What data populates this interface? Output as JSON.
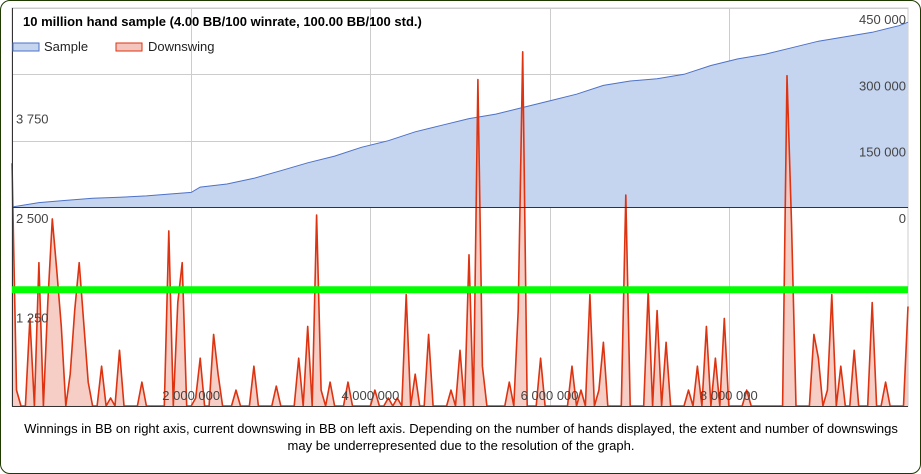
{
  "chart_data": {
    "type": "area",
    "title": "10 million hand sample (4.00 BB/100 winrate, 100.00 BB/100 std.)",
    "legend_position": "top-left",
    "series": [
      {
        "name": "Sample",
        "axis": "right",
        "color": "#4d72c8",
        "fill": "#c5d4ef",
        "x": [
          0,
          300000,
          600000,
          900000,
          1200000,
          1500000,
          1800000,
          2000000,
          2100000,
          2400000,
          2700000,
          3000000,
          3300000,
          3600000,
          3900000,
          4200000,
          4500000,
          4800000,
          5100000,
          5400000,
          5700000,
          6000000,
          6300000,
          6600000,
          6900000,
          7200000,
          7500000,
          7800000,
          8100000,
          8400000,
          8700000,
          9000000,
          9300000,
          9600000,
          9900000,
          10000000
        ],
        "values": [
          0,
          10000,
          15000,
          20000,
          22000,
          25000,
          30000,
          33000,
          45000,
          52000,
          65000,
          82000,
          100000,
          115000,
          135000,
          150000,
          170000,
          185000,
          200000,
          210000,
          225000,
          240000,
          255000,
          275000,
          285000,
          290000,
          300000,
          320000,
          335000,
          345000,
          360000,
          375000,
          385000,
          395000,
          410000,
          418000
        ]
      },
      {
        "name": "Downswing",
        "axis": "left",
        "color": "#dd3311",
        "fill": "#f4c5bc",
        "x": [
          0,
          50000,
          100000,
          150000,
          200000,
          250000,
          300000,
          350000,
          400000,
          450000,
          500000,
          550000,
          600000,
          650000,
          700000,
          750000,
          800000,
          850000,
          900000,
          950000,
          1000000,
          1050000,
          1100000,
          1150000,
          1200000,
          1250000,
          1300000,
          1350000,
          1400000,
          1450000,
          1500000,
          1550000,
          1600000,
          1650000,
          1700000,
          1750000,
          1800000,
          1850000,
          1900000,
          1950000,
          2000000,
          2050000,
          2100000,
          2150000,
          2200000,
          2250000,
          2300000,
          2350000,
          2400000,
          2450000,
          2500000,
          2550000,
          2600000,
          2650000,
          2700000,
          2750000,
          2800000,
          2850000,
          2900000,
          2950000,
          3000000,
          3050000,
          3100000,
          3150000,
          3200000,
          3250000,
          3300000,
          3350000,
          3400000,
          3450000,
          3500000,
          3550000,
          3600000,
          3650000,
          3700000,
          3750000,
          3800000,
          3850000,
          3900000,
          3950000,
          4000000,
          4050000,
          4100000,
          4150000,
          4200000,
          4250000,
          4300000,
          4350000,
          4400000,
          4450000,
          4500000,
          4550000,
          4600000,
          4650000,
          4700000,
          4750000,
          4800000,
          4850000,
          4900000,
          4950000,
          5000000,
          5050000,
          5100000,
          5150000,
          5200000,
          5250000,
          5300000,
          5350000,
          5400000,
          5450000,
          5500000,
          5550000,
          5600000,
          5650000,
          5700000,
          5750000,
          5800000,
          5850000,
          5900000,
          5950000,
          6000000,
          6050000,
          6100000,
          6150000,
          6200000,
          6250000,
          6300000,
          6350000,
          6400000,
          6450000,
          6500000,
          6550000,
          6600000,
          6650000,
          6700000,
          6750000,
          6800000,
          6850000,
          6900000,
          6950000,
          7000000,
          7050000,
          7100000,
          7150000,
          7200000,
          7250000,
          7300000,
          7350000,
          7400000,
          7450000,
          7500000,
          7550000,
          7600000,
          7650000,
          7700000,
          7750000,
          7800000,
          7850000,
          7900000,
          7950000,
          8000000,
          8050000,
          8100000,
          8150000,
          8200000,
          8250000,
          8300000,
          8350000,
          8400000,
          8450000,
          8500000,
          8550000,
          8600000,
          8650000,
          8700000,
          8750000,
          8800000,
          8850000,
          8900000,
          8950000,
          9000000,
          9050000,
          9100000,
          9150000,
          9200000,
          9250000,
          9300000,
          9350000,
          9400000,
          9450000,
          9500000,
          9550000,
          9600000,
          9650000,
          9700000,
          9750000,
          9800000,
          9850000,
          9900000,
          9950000,
          10000000
        ],
        "values": [
          3050,
          200,
          0,
          0,
          1100,
          0,
          1800,
          0,
          1300,
          2350,
          1700,
          1000,
          0,
          400,
          1200,
          1800,
          1050,
          300,
          0,
          0,
          500,
          0,
          100,
          0,
          700,
          0,
          0,
          0,
          0,
          300,
          0,
          0,
          0,
          0,
          0,
          2200,
          0,
          1300,
          1800,
          0,
          0,
          100,
          600,
          0,
          0,
          900,
          400,
          0,
          0,
          0,
          200,
          0,
          0,
          0,
          500,
          0,
          0,
          0,
          0,
          250,
          0,
          0,
          0,
          0,
          600,
          0,
          1000,
          0,
          2400,
          200,
          0,
          300,
          0,
          0,
          0,
          300,
          0,
          0,
          0,
          0,
          0,
          200,
          0,
          0,
          100,
          0,
          100,
          0,
          1400,
          0,
          400,
          0,
          0,
          900,
          0,
          0,
          0,
          0,
          200,
          0,
          700,
          0,
          1900,
          0,
          4100,
          500,
          0,
          0,
          0,
          0,
          0,
          300,
          0,
          1200,
          4450,
          0,
          0,
          0,
          600,
          0,
          0,
          0,
          0,
          0,
          0,
          500,
          0,
          200,
          0,
          1400,
          0,
          200,
          800,
          0,
          0,
          0,
          0,
          2650,
          0,
          0,
          0,
          0,
          1450,
          0,
          1200,
          0,
          800,
          0,
          0,
          0,
          0,
          200,
          0,
          500,
          0,
          1000,
          0,
          600,
          0,
          1100,
          0,
          0,
          0,
          0,
          200,
          0,
          0,
          0,
          0,
          0,
          0,
          0,
          0,
          4150,
          2300,
          0,
          0,
          0,
          0,
          900,
          600,
          0,
          200,
          1400,
          0,
          500,
          0,
          0,
          700,
          0,
          0,
          0,
          1300,
          0,
          0,
          300,
          0,
          0,
          0,
          0,
          1250
        ]
      }
    ],
    "x_ticks": [
      "2 000 000",
      "4 000 000",
      "6 000 000",
      "8 000 000"
    ],
    "x_tick_values": [
      2000000,
      4000000,
      6000000,
      8000000
    ],
    "xlim": [
      0,
      10000000
    ],
    "left_axis": {
      "ylim": [
        0,
        5000
      ],
      "ticks": [
        "1 250",
        "2 500",
        "3 750"
      ],
      "tick_values": [
        1250,
        2500,
        3750
      ]
    },
    "right_axis": {
      "ylim": [
        -450000,
        450000
      ],
      "ticks": [
        "0",
        "150 000",
        "300 000",
        "450 000"
      ],
      "tick_values": [
        0,
        150000,
        300000,
        450000
      ]
    },
    "reference_line": {
      "axis": "left",
      "value": 1460,
      "color": "#00ff00"
    },
    "grid": true
  },
  "caption": "Winnings in BB on right axis, current downswing in BB on left axis. Depending on the number of hands displayed, the extent and number of downswings may be underrepresented due to the resolution of the graph."
}
